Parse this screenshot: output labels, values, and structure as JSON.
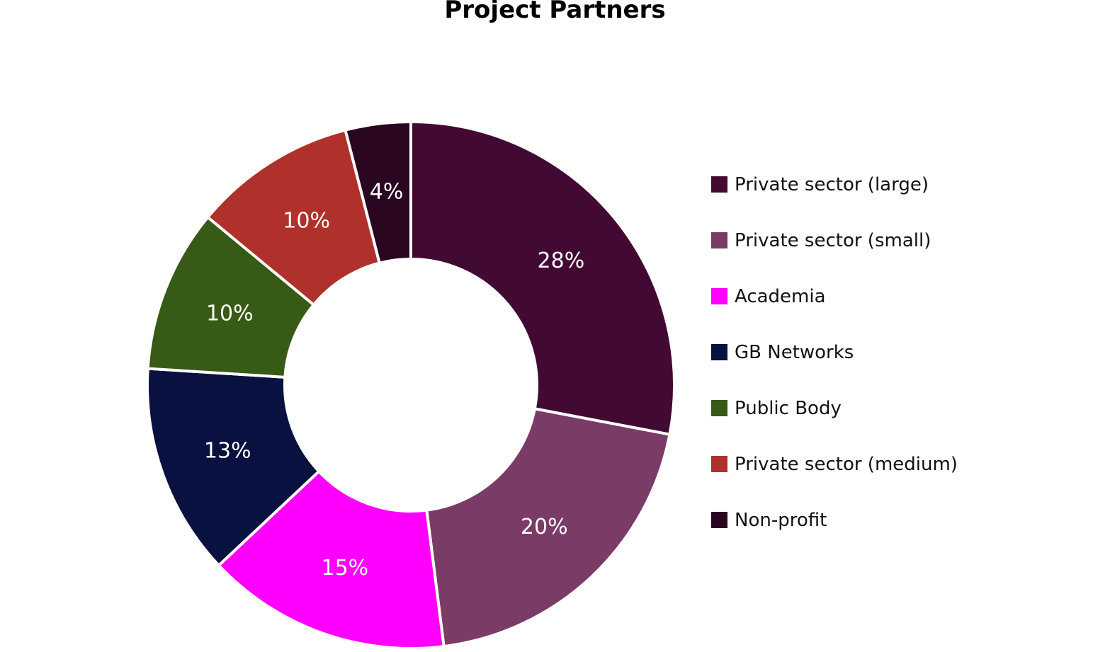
{
  "chart_data": {
    "type": "pie",
    "title": "Project Partners",
    "donut": true,
    "legend_position": "right",
    "categories": [
      "Private sector (large)",
      "Private sector (small)",
      "Academia",
      "GB Networks",
      "Public Body",
      "Private sector (medium)",
      "Non-profit"
    ],
    "values": [
      28,
      20,
      15,
      13,
      10,
      10,
      4
    ],
    "labels": [
      "28%",
      "20%",
      "15%",
      "13%",
      "10%",
      "10%",
      "4%"
    ],
    "colors": [
      "#420a33",
      "#7a3b66",
      "#ff00ff",
      "#08113f",
      "#375a16",
      "#b0312b",
      "#2a0620"
    ]
  }
}
